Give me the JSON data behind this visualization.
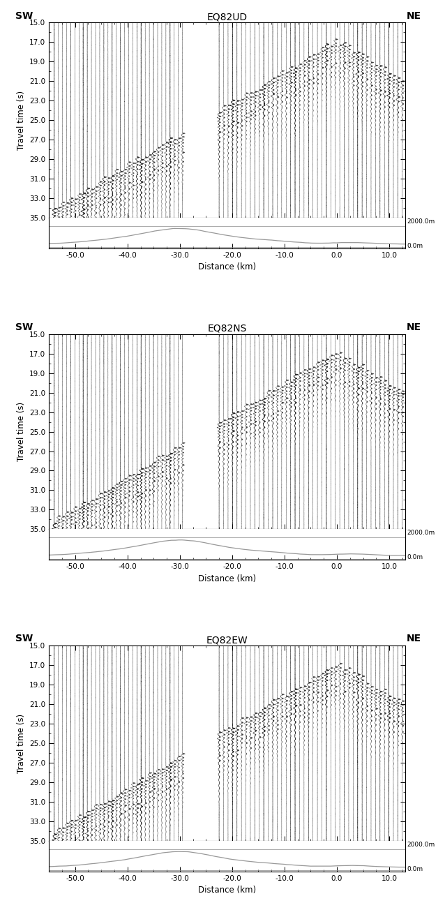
{
  "panels": [
    "EQ82UD",
    "EQ82NS",
    "EQ82EW"
  ],
  "xlim": [
    -55,
    13
  ],
  "ylim": [
    15.0,
    35.0
  ],
  "x_ticks": [
    -50.0,
    -40.0,
    -30.0,
    -20.0,
    -10.0,
    0.0,
    10.0
  ],
  "y_ticks": [
    15.0,
    17.0,
    19.0,
    21.0,
    23.0,
    25.0,
    27.0,
    29.0,
    31.0,
    33.0,
    35.0
  ],
  "xlabel": "Distance (km)",
  "ylabel": "Travel time (s)",
  "elev_ylim": [
    0,
    3000
  ],
  "elev_labels": [
    "2000.0m",
    "0.0m"
  ],
  "bg_color": "#ffffff",
  "seed": 42,
  "gap_start": -29.5,
  "gap_end": -22.5
}
